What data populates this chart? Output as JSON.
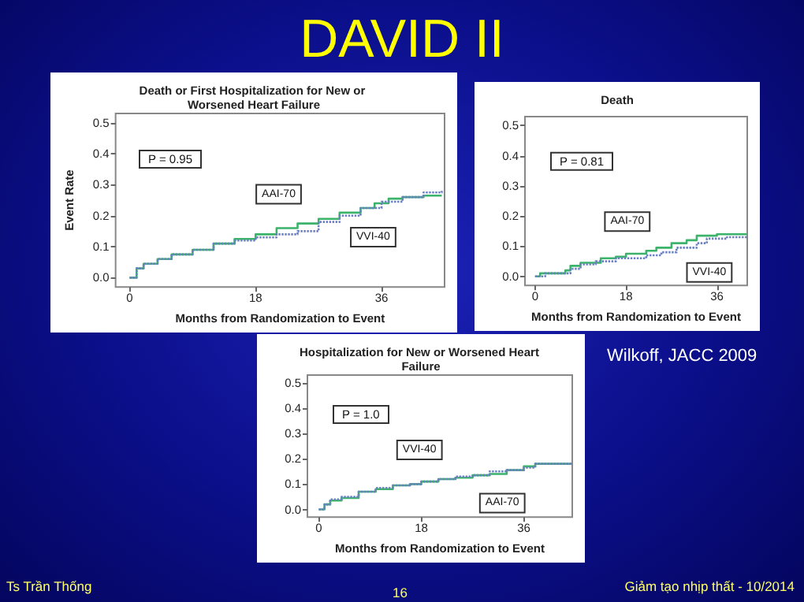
{
  "chart_data": [
    {
      "type": "step",
      "title": "Death or First Hospitalization for New or Worsened Heart Failure",
      "xlabel": "Months from Randomization to Event",
      "ylabel": "Event Rate",
      "annotations": [
        "P = 0.95"
      ],
      "xlim": [
        -2,
        45
      ],
      "ylim": [
        -0.03,
        0.53
      ],
      "xticks": [
        0,
        18,
        36
      ],
      "yticks": [
        {
          "value": 0,
          "label": "0.0"
        },
        {
          "value": 0.1,
          "label": "0.1"
        },
        {
          "value": 0.2,
          "label": "0.2"
        },
        {
          "value": 0.3,
          "label": "0.3"
        },
        {
          "value": 0.4,
          "label": "0.4"
        },
        {
          "value": 0.5,
          "label": "0.5"
        }
      ],
      "grid": false,
      "legend": false,
      "marker": "none",
      "series": [
        {
          "name": "AAI-70",
          "color": "#3cb36a",
          "line_style": "solid",
          "x": [
            0,
            1,
            2,
            4,
            6,
            9,
            12,
            15,
            18,
            21,
            24,
            27,
            30,
            33,
            35,
            37,
            39,
            42,
            44.6
          ],
          "values": [
            0,
            0.03,
            0.045,
            0.06,
            0.075,
            0.09,
            0.11,
            0.125,
            0.14,
            0.16,
            0.175,
            0.19,
            0.21,
            0.225,
            0.24,
            0.255,
            0.26,
            0.265,
            0.265
          ]
        },
        {
          "name": "VVI-40",
          "color": "#6a7fc4",
          "line_style": "dotted",
          "x": [
            0,
            1,
            2,
            4,
            6,
            9,
            12,
            15,
            18,
            21,
            24,
            27,
            30,
            33,
            36,
            39,
            42,
            44.6
          ],
          "values": [
            0,
            0.03,
            0.045,
            0.06,
            0.075,
            0.09,
            0.11,
            0.12,
            0.13,
            0.14,
            0.15,
            0.18,
            0.2,
            0.225,
            0.245,
            0.26,
            0.275,
            0.28
          ]
        }
      ]
    },
    {
      "type": "step",
      "title": "Death",
      "xlabel": "Months from Randomization to Event",
      "annotations": [
        "P = 0.81"
      ],
      "xlim": [
        -2,
        42
      ],
      "ylim": [
        -0.03,
        0.53
      ],
      "xticks": [
        0,
        18,
        36
      ],
      "yticks": [
        {
          "value": 0,
          "label": "0.0"
        },
        {
          "value": 0.1,
          "label": "0.1"
        },
        {
          "value": 0.2,
          "label": "0.2"
        },
        {
          "value": 0.3,
          "label": "0.3"
        },
        {
          "value": 0.4,
          "label": "0.4"
        },
        {
          "value": 0.5,
          "label": "0.5"
        }
      ],
      "grid": false,
      "legend": false,
      "marker": "none",
      "series": [
        {
          "name": "AAI-70",
          "color": "#3cb36a",
          "line_style": "solid",
          "x": [
            0,
            1,
            6,
            7,
            9,
            13,
            16,
            18,
            22,
            24,
            27,
            30,
            32,
            36,
            42
          ],
          "values": [
            0,
            0.01,
            0.02,
            0.035,
            0.045,
            0.06,
            0.065,
            0.075,
            0.085,
            0.095,
            0.11,
            0.12,
            0.135,
            0.14,
            0.14
          ]
        },
        {
          "name": "VVI-40",
          "color": "#6a7fc4",
          "line_style": "dotted",
          "x": [
            0,
            2,
            7,
            9,
            12,
            16,
            22,
            25,
            28,
            32,
            34,
            38,
            42
          ],
          "values": [
            0,
            0.01,
            0.025,
            0.04,
            0.05,
            0.06,
            0.07,
            0.08,
            0.095,
            0.11,
            0.125,
            0.13,
            0.13
          ]
        }
      ]
    },
    {
      "type": "step",
      "title": "Hospitalization for New or Worsened Heart Failure",
      "xlabel": "Months from Randomization to Event",
      "annotations": [
        "P = 1.0"
      ],
      "xlim": [
        -2,
        44.5
      ],
      "ylim": [
        -0.03,
        0.53
      ],
      "xticks": [
        0,
        18,
        36
      ],
      "yticks": [
        {
          "value": 0,
          "label": "0.0"
        },
        {
          "value": 0.1,
          "label": "0.1"
        },
        {
          "value": 0.2,
          "label": "0.2"
        },
        {
          "value": 0.3,
          "label": "0.3"
        },
        {
          "value": 0.4,
          "label": "0.4"
        },
        {
          "value": 0.5,
          "label": "0.5"
        }
      ],
      "grid": false,
      "legend": false,
      "marker": "none",
      "series": [
        {
          "name": "VVI-40",
          "color": "#6a7fc4",
          "line_style": "dotted",
          "x": [
            0,
            1,
            2,
            4,
            7,
            10,
            13,
            16,
            18,
            21,
            24,
            27,
            30,
            33,
            36,
            38,
            44.5
          ],
          "values": [
            0,
            0.02,
            0.04,
            0.05,
            0.07,
            0.085,
            0.095,
            0.1,
            0.11,
            0.12,
            0.13,
            0.135,
            0.15,
            0.155,
            0.165,
            0.18,
            0.18
          ]
        },
        {
          "name": "AAI-70",
          "color": "#3cb36a",
          "line_style": "solid",
          "x": [
            0,
            1,
            2,
            4,
            7,
            10,
            13,
            16,
            18,
            21,
            24,
            27,
            30,
            33,
            36,
            38,
            44.5
          ],
          "values": [
            0,
            0.02,
            0.035,
            0.045,
            0.07,
            0.08,
            0.095,
            0.1,
            0.11,
            0.12,
            0.125,
            0.135,
            0.14,
            0.155,
            0.17,
            0.18,
            0.18
          ]
        }
      ]
    },
    {
      "type": "other",
      "title": "DAVID II",
      "annotations": [
        "Wilkoff, JACC 2009",
        "Ts Trần Thống",
        "16",
        "Giảm tạo nhịp thất - 10/2014"
      ]
    }
  ]
}
